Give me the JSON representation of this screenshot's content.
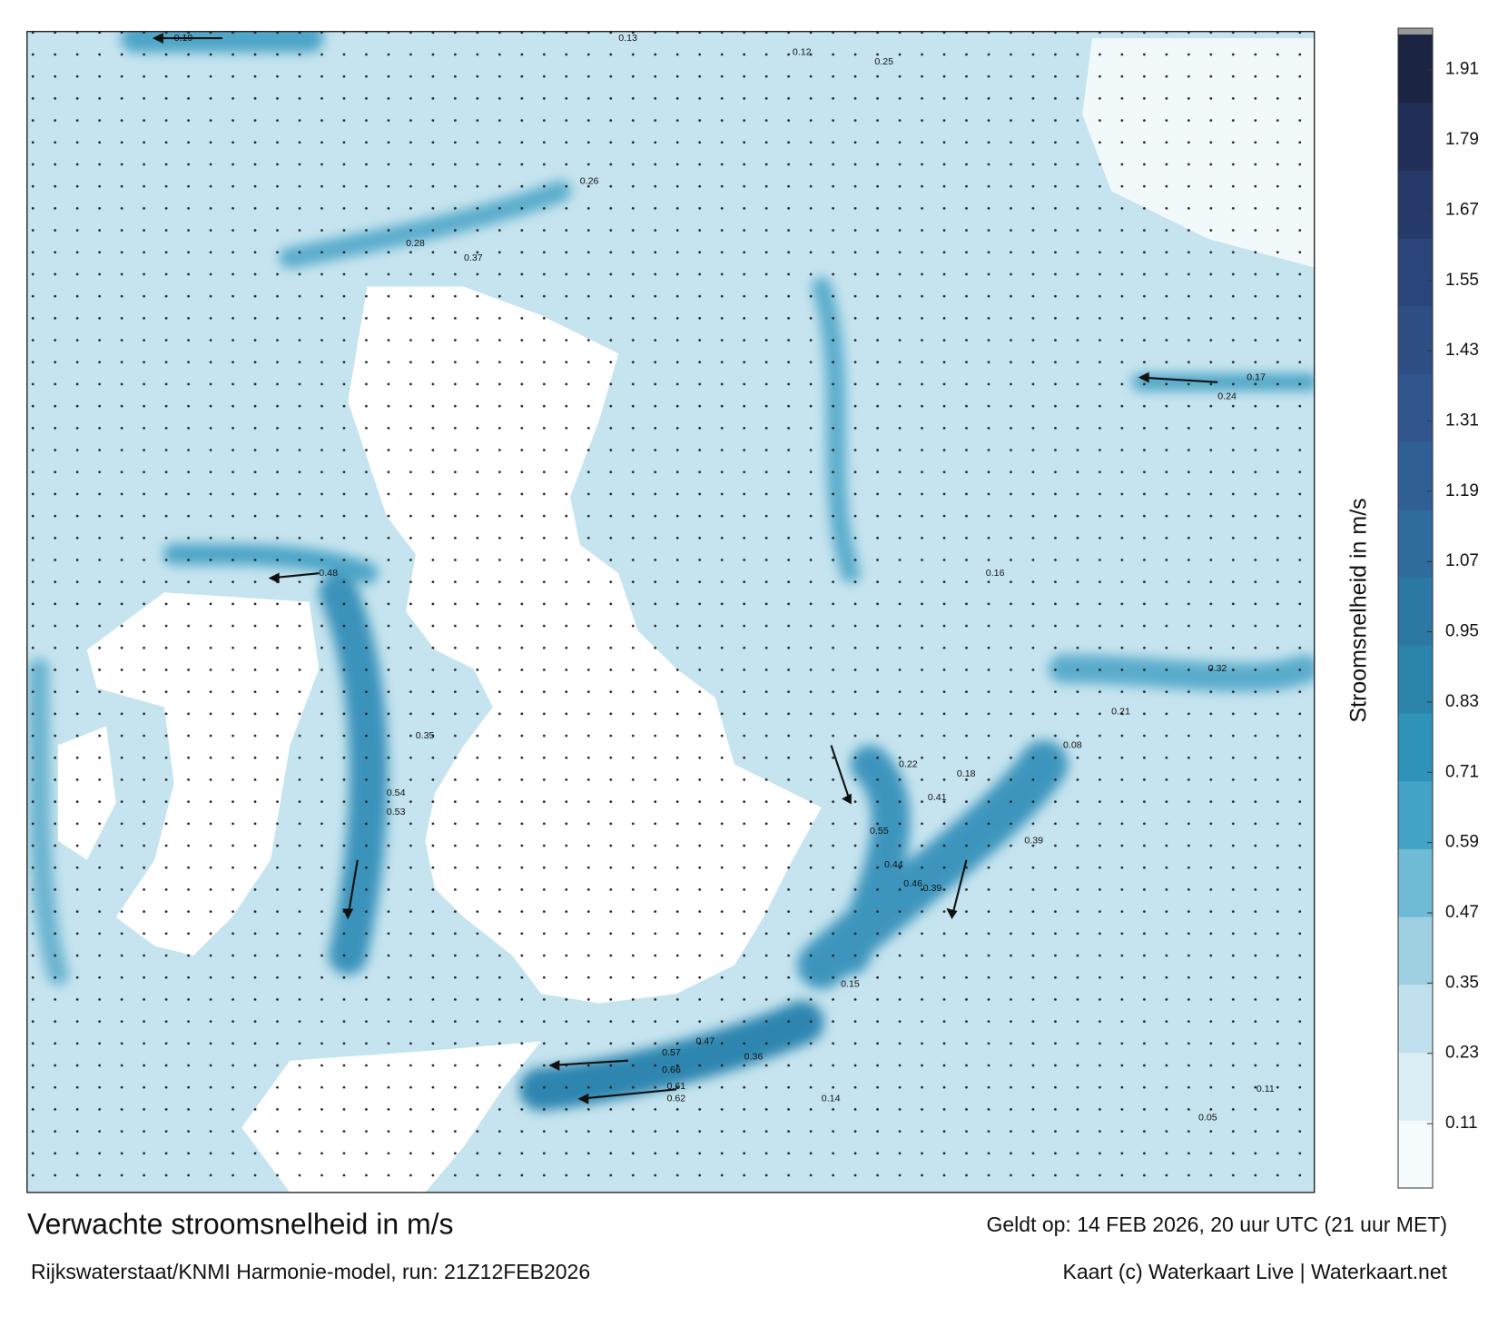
{
  "map": {
    "title": "Verwachte stroomsnelheid in m/s",
    "subtitle": "Rijkswaterstaat/KNMI Harmonie-model, run: 21Z12FEB2026",
    "valid_time": "Geldt op: 14 FEB 2026, 20 uur UTC (21 uur MET)",
    "credit": "Kaart (c) Waterkaart Live | Waterkaart.net",
    "labels": [
      "0.19",
      "0.13",
      "0.12",
      "0.26",
      "0.28",
      "0.37",
      "0.25",
      "0.41",
      "0.39",
      "0.48",
      "0.54",
      "0.53",
      "0.55",
      "0.44",
      "0.46",
      "0.39",
      "0.57",
      "0.66",
      "0.62",
      "0.61",
      "0.47",
      "0.36",
      "0.14",
      "0.17",
      "0.24",
      "0.32",
      "0.21",
      "0.08",
      "0.05",
      "0.11",
      "0.16",
      "0.35",
      "0.22",
      "0.15",
      "0.18"
    ],
    "colorbar": {
      "label": "Stroomsnelheid in m/s",
      "lim": [
        0,
        1.97
      ],
      "ticks": [
        0.11,
        0.23,
        0.35,
        0.47,
        0.59,
        0.71,
        0.83,
        0.95,
        1.07,
        1.19,
        1.31,
        1.43,
        1.55,
        1.67,
        1.79,
        1.91
      ],
      "colors": [
        "#f5fafc",
        "#dbedf4",
        "#bfe0ec",
        "#9fd0e2",
        "#6fbad4",
        "#43a3c6",
        "#2f92b8",
        "#2b84ac",
        "#2c78a4",
        "#2f6b9c",
        "#305f95",
        "#31568d",
        "#2f4f84",
        "#2a4579",
        "#253a69",
        "#212f58",
        "#1b2442"
      ]
    }
  }
}
